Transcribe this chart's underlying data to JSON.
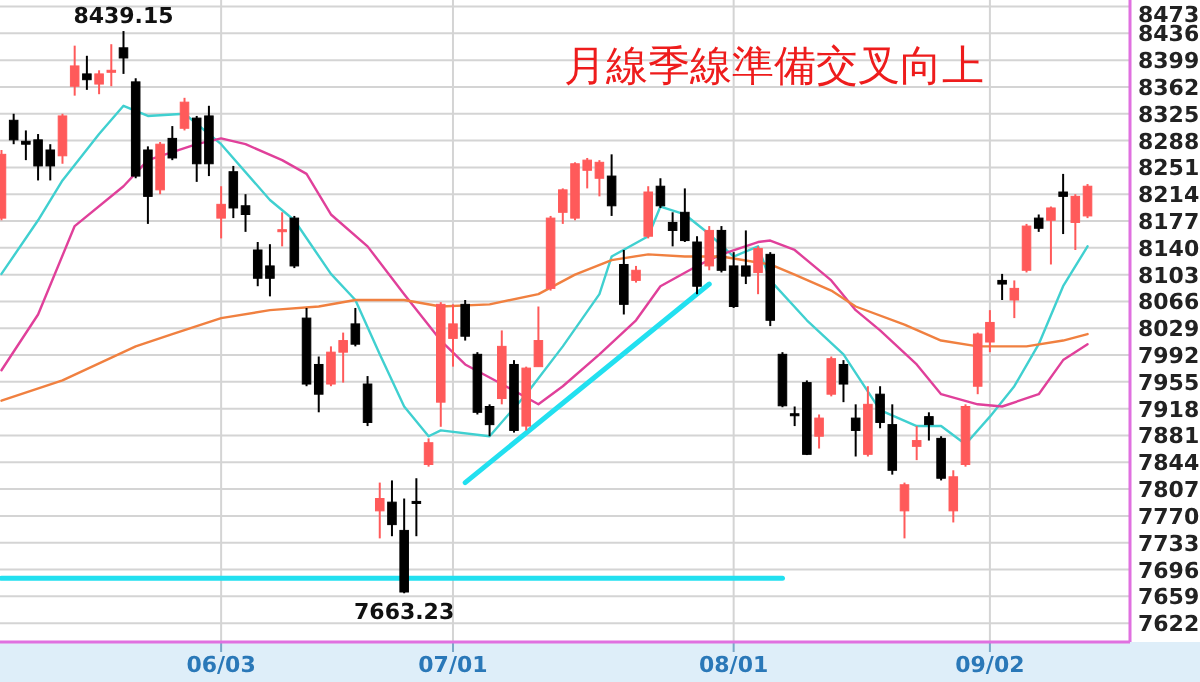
{
  "chart_data": {
    "type": "candlestick",
    "title": "月線季線準備交叉向上",
    "categories": [
      null,
      null,
      null,
      null,
      null,
      null,
      null,
      null,
      null,
      null,
      null,
      null,
      null,
      null,
      null,
      null,
      null,
      null,
      "06/03",
      null,
      null,
      null,
      null,
      null,
      null,
      null,
      null,
      null,
      null,
      null,
      null,
      null,
      null,
      null,
      null,
      null,
      null,
      "07/01",
      null,
      null,
      null,
      null,
      null,
      null,
      null,
      null,
      null,
      null,
      null,
      null,
      null,
      null,
      null,
      null,
      null,
      null,
      null,
      null,
      null,
      null,
      "08/01",
      null,
      null,
      null,
      null,
      null,
      null,
      null,
      null,
      null,
      null,
      null,
      null,
      null,
      null,
      null,
      null,
      null,
      null,
      null,
      null,
      "09/02",
      null,
      null,
      null,
      null,
      null,
      null,
      null,
      null
    ],
    "ohlc": [
      [
        8181,
        8275,
        8178,
        8269
      ],
      [
        8316,
        8325,
        8283,
        8289
      ],
      [
        8287,
        8302,
        8261,
        8283
      ],
      [
        8289,
        8297,
        8233,
        8253
      ],
      [
        8275,
        8283,
        8233,
        8253
      ],
      [
        8267,
        8325,
        8256,
        8322
      ],
      [
        8363,
        8419,
        8350,
        8391
      ],
      [
        8380,
        8405,
        8358,
        8372
      ],
      [
        8366,
        8385,
        8352,
        8380
      ],
      [
        8383,
        8421,
        8363,
        8385
      ],
      [
        8416,
        8439.15,
        8380,
        8402
      ],
      [
        8369,
        8374,
        8236,
        8239
      ],
      [
        8275,
        8280,
        8173,
        8211
      ],
      [
        8220,
        8286,
        8214,
        8283
      ],
      [
        8291,
        8308,
        8261,
        8264
      ],
      [
        8305,
        8347,
        8302,
        8341
      ],
      [
        8319,
        8322,
        8231,
        8256
      ],
      [
        8322,
        8336,
        8239,
        8256
      ],
      [
        8181,
        8225,
        8153,
        8200
      ],
      [
        8245,
        8253,
        8181,
        8195
      ],
      [
        8198,
        8214,
        8162,
        8186
      ],
      [
        8137,
        8148,
        8087,
        8098
      ],
      [
        8115,
        8145,
        8073,
        8098
      ],
      [
        8163,
        8189,
        8142,
        8165
      ],
      [
        8181,
        8184,
        8112,
        8115
      ],
      [
        8043,
        8057,
        7949,
        7952
      ],
      [
        7979,
        7990,
        7913,
        7938
      ],
      [
        7952,
        8004,
        7949,
        7996
      ],
      [
        7996,
        8023,
        7954,
        8012
      ],
      [
        8035,
        8057,
        8004,
        8007
      ],
      [
        7952,
        7963,
        7894,
        7899
      ],
      [
        7777,
        7816,
        7739,
        7794
      ],
      [
        7789,
        7819,
        7742,
        7758
      ],
      [
        7750,
        7794,
        7663.23,
        7665
      ],
      [
        7790,
        7822,
        7742,
        7788
      ],
      [
        7841,
        7877,
        7838,
        7871
      ],
      [
        7927,
        8065,
        7893,
        8062
      ],
      [
        8015,
        8062,
        7976,
        8035
      ],
      [
        8062,
        8068,
        8012,
        8018
      ],
      [
        7993,
        7996,
        7910,
        7913
      ],
      [
        7921,
        7924,
        7880,
        7896
      ],
      [
        7932,
        8026,
        7924,
        8004
      ],
      [
        7979,
        7985,
        7885,
        7888
      ],
      [
        7894,
        7976,
        7888,
        7974
      ],
      [
        7976,
        8059,
        7976,
        8012
      ],
      [
        8084,
        8184,
        8081,
        8181
      ],
      [
        8189,
        8222,
        8173,
        8220
      ],
      [
        8181,
        8258,
        8178,
        8256
      ],
      [
        8247,
        8264,
        8222,
        8261
      ],
      [
        8236,
        8261,
        8211,
        8258
      ],
      [
        8239,
        8269,
        8184,
        8198
      ],
      [
        8117,
        8137,
        8048,
        8062
      ],
      [
        8095,
        8115,
        8092,
        8109
      ],
      [
        8156,
        8225,
        8153,
        8217
      ],
      [
        8225,
        8236,
        8195,
        8198
      ],
      [
        8175,
        8189,
        8142,
        8164
      ],
      [
        8189,
        8222,
        8148,
        8150
      ],
      [
        8148,
        8156,
        8076,
        8087
      ],
      [
        8115,
        8170,
        8109,
        8164
      ],
      [
        8164,
        8170,
        8106,
        8109
      ],
      [
        8115,
        8134,
        8057,
        8059
      ],
      [
        8115,
        8164,
        8090,
        8101
      ],
      [
        8106,
        8142,
        8076,
        8139
      ],
      [
        8131,
        8134,
        8032,
        8040
      ],
      [
        7993,
        7996,
        7920,
        7922
      ],
      [
        7911,
        7921,
        7894,
        7910
      ],
      [
        7954,
        7957,
        7854,
        7855
      ],
      [
        7880,
        7910,
        7863,
        7905
      ],
      [
        7938,
        7990,
        7935,
        7987
      ],
      [
        7979,
        7985,
        7927,
        7952
      ],
      [
        7905,
        7924,
        7852,
        7888
      ],
      [
        7855,
        7949,
        7852,
        7924
      ],
      [
        7938,
        7949,
        7891,
        7899
      ],
      [
        7896,
        7924,
        7827,
        7833
      ],
      [
        7777,
        7816,
        7739,
        7813
      ],
      [
        7866,
        7894,
        7847,
        7874
      ],
      [
        7907,
        7913,
        7874,
        7896
      ],
      [
        7877,
        7880,
        7819,
        7822
      ],
      [
        7777,
        7833,
        7761,
        7824
      ],
      [
        7841,
        7924,
        7838,
        7921
      ],
      [
        7949,
        8023,
        7938,
        8021
      ],
      [
        8010,
        8054,
        7996,
        8037
      ],
      [
        8095,
        8104,
        8068,
        8090
      ],
      [
        8068,
        8095,
        8043,
        8084
      ],
      [
        8109,
        8173,
        8106,
        8170
      ],
      [
        8181,
        8186,
        8162,
        8167
      ],
      [
        8178,
        8197,
        8117,
        8195
      ],
      [
        8217,
        8242,
        8159,
        8211
      ],
      [
        8175,
        8214,
        8137,
        8211
      ],
      [
        8184,
        8228,
        8181,
        8225
      ]
    ],
    "colors": [
      "#ff5a5a",
      "#000000",
      "#000000",
      "#000000",
      "#000000",
      "#ff5a5a",
      "#ff5a5a",
      "#000000",
      "#ff5a5a",
      "#ff5a5a",
      "#000000",
      "#000000",
      "#000000",
      "#ff5a5a",
      "#000000",
      "#ff5a5a",
      "#000000",
      "#000000",
      "#ff5a5a",
      "#000000",
      "#000000",
      "#000000",
      "#000000",
      "#ff5a5a",
      "#000000",
      "#000000",
      "#000000",
      "#ff5a5a",
      "#ff5a5a",
      "#000000",
      "#000000",
      "#ff5a5a",
      "#000000",
      "#000000",
      "#000000",
      "#ff5a5a",
      "#ff5a5a",
      "#ff5a5a",
      "#000000",
      "#000000",
      "#000000",
      "#ff5a5a",
      "#000000",
      "#ff5a5a",
      "#ff5a5a",
      "#ff5a5a",
      "#ff5a5a",
      "#ff5a5a",
      "#ff5a5a",
      "#ff5a5a",
      "#000000",
      "#000000",
      "#ff5a5a",
      "#ff5a5a",
      "#000000",
      "#000000",
      "#000000",
      "#000000",
      "#ff5a5a",
      "#000000",
      "#000000",
      "#000000",
      "#ff5a5a",
      "#000000",
      "#000000",
      "#000000",
      "#000000",
      "#ff5a5a",
      "#ff5a5a",
      "#000000",
      "#000000",
      "#ff5a5a",
      "#000000",
      "#000000",
      "#ff5a5a",
      "#ff5a5a",
      "#000000",
      "#000000",
      "#ff5a5a",
      "#ff5a5a",
      "#ff5a5a",
      "#ff5a5a",
      "#000000",
      "#ff5a5a",
      "#ff5a5a",
      "#000000",
      "#ff5a5a",
      "#000000",
      "#ff5a5a",
      "#ff5a5a"
    ],
    "series": [
      {
        "type": "line",
        "color": "#40d0d0",
        "values": [
          8104,
          null,
          null,
          8178,
          null,
          8233,
          null,
          null,
          8297,
          null,
          8336,
          null,
          8322,
          null,
          null,
          8325,
          null,
          null,
          8283,
          null,
          null,
          null,
          8206,
          null,
          8178,
          null,
          null,
          8104,
          null,
          8068,
          null,
          7993,
          null,
          7921,
          null,
          7880,
          7888,
          null,
          null,
          null,
          7880,
          null,
          null,
          7938,
          null,
          null,
          8004,
          null,
          null,
          8076,
          8128,
          null,
          null,
          8156,
          8197,
          null,
          8186,
          null,
          8159,
          null,
          8128,
          null,
          8142,
          8095,
          null,
          null,
          8040,
          null,
          null,
          7993,
          null,
          null,
          7916,
          null,
          null,
          7894,
          null,
          7894,
          null,
          7869,
          null,
          7907,
          null,
          7949,
          null,
          8007,
          null,
          8087,
          null,
          8142
        ]
      },
      {
        "type": "line",
        "color": "#e0409a",
        "values": [
          7971,
          null,
          null,
          8048,
          null,
          null,
          8170,
          null,
          null,
          null,
          8225,
          null,
          8261,
          null,
          null,
          null,
          8283,
          null,
          8291,
          null,
          8283,
          null,
          null,
          8261,
          null,
          8242,
          null,
          8186,
          null,
          null,
          8142,
          null,
          null,
          8076,
          null,
          null,
          8012,
          null,
          7979,
          null,
          null,
          7952,
          null,
          null,
          7924,
          null,
          7949,
          null,
          null,
          7993,
          null,
          null,
          8040,
          null,
          8087,
          null,
          null,
          8115,
          null,
          8131,
          null,
          null,
          8148,
          8150,
          null,
          8137,
          null,
          null,
          8095,
          null,
          8054,
          null,
          8026,
          null,
          null,
          7979,
          null,
          7938,
          null,
          null,
          7924,
          null,
          7921,
          null,
          null,
          7938,
          null,
          7985,
          null,
          8007
        ]
      },
      {
        "type": "line",
        "color": "#f08040",
        "values": [
          7929,
          null,
          null,
          null,
          null,
          7957,
          null,
          null,
          null,
          null,
          null,
          8004,
          null,
          null,
          8021,
          null,
          null,
          null,
          8043,
          null,
          null,
          null,
          8054,
          null,
          null,
          null,
          8059,
          null,
          null,
          8068,
          null,
          null,
          null,
          8068,
          null,
          null,
          8059,
          null,
          null,
          null,
          8062,
          null,
          null,
          null,
          8076,
          null,
          null,
          8103,
          null,
          null,
          8123,
          null,
          null,
          8131,
          null,
          null,
          8128,
          null,
          null,
          8128,
          null,
          null,
          null,
          8117,
          null,
          8103,
          null,
          null,
          8081,
          null,
          8059,
          null,
          null,
          null,
          8034,
          null,
          null,
          8012,
          null,
          null,
          8004,
          null,
          null,
          null,
          8004,
          null,
          null,
          8012,
          null,
          8021
        ]
      },
      {
        "type": "line",
        "color": "#22e0f0",
        "values": [
          7684,
          null,
          null,
          null,
          null,
          null,
          null,
          null,
          null,
          null,
          null,
          null,
          null,
          null,
          null,
          null,
          null,
          null,
          null,
          null,
          null,
          null,
          null,
          null,
          null,
          null,
          null,
          null,
          null,
          null,
          null,
          null,
          null,
          null,
          null,
          null,
          null,
          null,
          null,
          null,
          null,
          null,
          null,
          null,
          null,
          null,
          null,
          null,
          null,
          null,
          null,
          null,
          null,
          null,
          null,
          null,
          null,
          null,
          null,
          null,
          null,
          null,
          null,
          null,
          7684,
          null,
          null,
          null,
          null,
          null,
          null,
          null,
          null,
          null,
          null,
          null,
          null,
          null,
          null,
          null,
          null,
          null,
          null,
          null,
          null,
          null,
          null,
          null,
          null,
          null
        ]
      },
      {
        "type": "line",
        "color": "#22e0f0",
        "values": [
          null,
          null,
          null,
          null,
          null,
          null,
          null,
          null,
          null,
          null,
          null,
          null,
          null,
          null,
          null,
          null,
          null,
          null,
          null,
          null,
          null,
          null,
          null,
          null,
          null,
          null,
          null,
          null,
          null,
          null,
          null,
          null,
          null,
          null,
          null,
          null,
          null,
          null,
          7816,
          null,
          null,
          null,
          null,
          null,
          null,
          null,
          null,
          null,
          null,
          null,
          null,
          null,
          null,
          null,
          null,
          null,
          null,
          null,
          8090,
          null,
          null,
          null,
          null,
          null,
          null,
          null,
          null,
          null,
          null,
          null,
          null,
          null,
          null,
          null,
          null,
          null,
          null,
          null,
          null,
          null,
          null,
          null,
          null,
          null,
          null,
          null,
          null,
          null,
          null,
          null
        ]
      }
    ],
    "ylim": [
      7596,
      8482
    ],
    "yticks": [
      7622,
      7659,
      7696,
      7733,
      7770,
      7807,
      7844,
      7881,
      7918,
      7955,
      7992,
      8029,
      8066,
      8103,
      8140,
      8177,
      8214,
      8251,
      8288,
      8325,
      8362,
      8399,
      8436,
      8473
    ],
    "grid": true,
    "annotations": [
      {
        "text": "8439.15",
        "y": 8439.15
      },
      {
        "text": "7663.23",
        "y": 7663.23
      }
    ]
  }
}
